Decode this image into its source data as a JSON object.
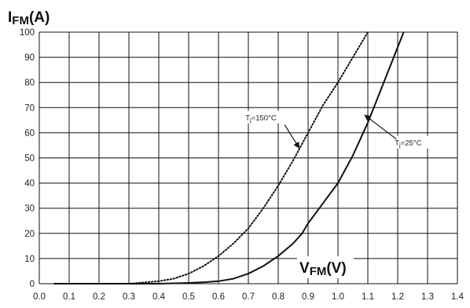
{
  "chart_data": {
    "type": "line",
    "ylabel_main": "I",
    "ylabel_sub": "FM",
    "ylabel_unit": "(A)",
    "xlabel_main": "V",
    "xlabel_sub": "FM",
    "xlabel_unit": "(V)",
    "xlim": [
      0.0,
      1.4
    ],
    "ylim": [
      0,
      100
    ],
    "x_ticks": [
      "0.0",
      "0.1",
      "0.2",
      "0.3",
      "0.4",
      "0.5",
      "0.6",
      "0.7",
      "0.8",
      "0.9",
      "1.0",
      "1.1",
      "1.2",
      "1.3",
      "1.4"
    ],
    "y_ticks": [
      "0",
      "10",
      "20",
      "30",
      "40",
      "50",
      "60",
      "70",
      "80",
      "90",
      "100"
    ],
    "grid": true,
    "series": [
      {
        "style": "solid",
        "color": "#111111",
        "x": [
          0.05,
          0.3,
          0.4,
          0.5,
          0.55,
          0.6,
          0.65,
          0.7,
          0.75,
          0.8,
          0.85,
          0.88,
          0.9,
          0.95,
          1.0,
          1.05,
          1.1,
          1.15,
          1.2,
          1.22
        ],
        "y": [
          0,
          0,
          0,
          0.3,
          0.6,
          1,
          2,
          4,
          7,
          11,
          16,
          20,
          24,
          32,
          40,
          51,
          64,
          79,
          94,
          100
        ]
      },
      {
        "style": "dotted",
        "color": "#111111",
        "x": [
          0.05,
          0.3,
          0.35,
          0.4,
          0.45,
          0.5,
          0.55,
          0.6,
          0.65,
          0.7,
          0.75,
          0.8,
          0.85,
          0.9,
          0.95,
          1.0,
          1.05,
          1.1
        ],
        "y": [
          0,
          0,
          0.5,
          1,
          2,
          4,
          7,
          11,
          16,
          22,
          30,
          39,
          49,
          60,
          71,
          80,
          90,
          100
        ]
      }
    ],
    "annotations": [
      {
        "main": "T",
        "sub": "j",
        "rest": "=150°C",
        "label_x": 0.69,
        "label_y": 65,
        "arrow_to_x": 0.87,
        "arrow_to_y": 54
      },
      {
        "main": "T",
        "sub": "j",
        "rest": "=25°C",
        "label_x": 1.19,
        "label_y": 55,
        "arrow_to_x": 1.09,
        "arrow_to_y": 67
      }
    ]
  }
}
